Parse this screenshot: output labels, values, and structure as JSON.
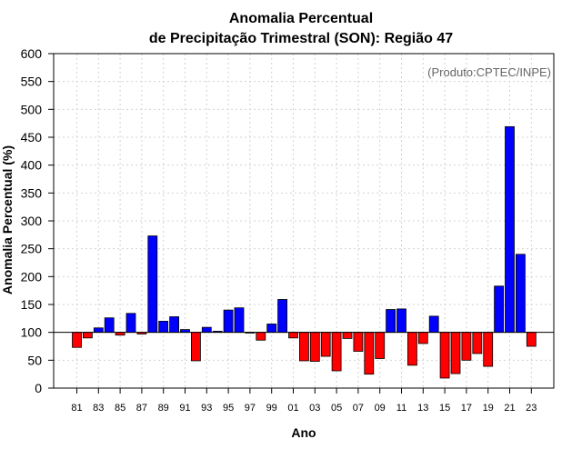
{
  "chart_data": {
    "type": "bar",
    "title_line1": "Anomalia Percentual",
    "title_line2": "de Precipitação Trimestral (SON): Região 47",
    "xlabel": "Ano",
    "ylabel": "Anomalia Percentual (%)",
    "source": "(Produto:CPTEC/INPE)",
    "ylim": [
      0,
      600
    ],
    "yticks": [
      0,
      50,
      100,
      150,
      200,
      250,
      300,
      350,
      400,
      450,
      500,
      550,
      600
    ],
    "baseline": 100,
    "grid": true,
    "categories": [
      "81",
      "82",
      "83",
      "84",
      "85",
      "86",
      "87",
      "88",
      "89",
      "90",
      "91",
      "92",
      "93",
      "94",
      "95",
      "96",
      "97",
      "98",
      "99",
      "00",
      "01",
      "02",
      "03",
      "04",
      "05",
      "06",
      "07",
      "08",
      "09",
      "10",
      "11",
      "12",
      "13",
      "14",
      "15",
      "16",
      "17",
      "18",
      "19",
      "20",
      "21",
      "22",
      "23"
    ],
    "xtick_labels": [
      "81",
      "83",
      "85",
      "87",
      "89",
      "91",
      "93",
      "95",
      "97",
      "99",
      "01",
      "03",
      "05",
      "07",
      "09",
      "11",
      "13",
      "15",
      "17",
      "19",
      "21",
      "23"
    ],
    "values": [
      73,
      90,
      108,
      126,
      95,
      134,
      97,
      273,
      120,
      128,
      105,
      49,
      109,
      102,
      140,
      144,
      99,
      86,
      115,
      159,
      90,
      49,
      48,
      57,
      31,
      89,
      66,
      25,
      53,
      141,
      142,
      41,
      80,
      129,
      18,
      26,
      50,
      62,
      39,
      183,
      469,
      240,
      75
    ],
    "colors": {
      "above": "#0000ff",
      "below": "#ff0000",
      "baseline": "#000000",
      "grid": "#d3d3d3"
    }
  }
}
